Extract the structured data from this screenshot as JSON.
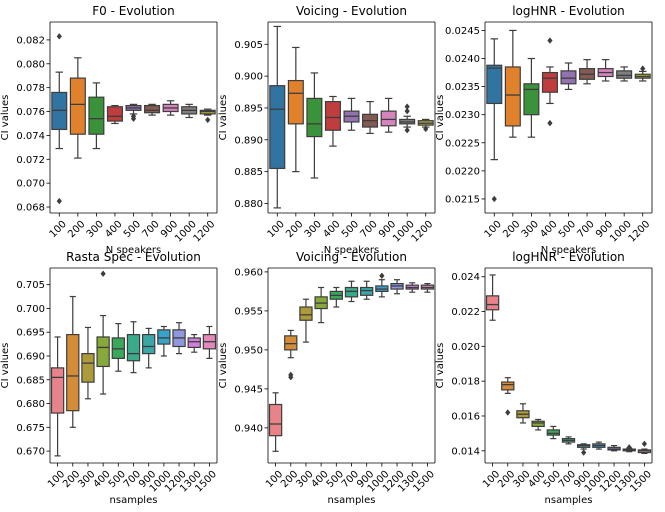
{
  "chart_data": [
    {
      "type": "box",
      "title": "F0 - Evolution",
      "xlabel": "N speakers",
      "ylabel": "CI values",
      "ylim": [
        0.0675,
        0.0835
      ],
      "yticks": [
        0.068,
        0.07,
        0.072,
        0.074,
        0.076,
        0.078,
        0.08,
        0.082
      ],
      "ytick_labels": [
        "0.068",
        "0.070",
        "0.072",
        "0.074",
        "0.076",
        "0.078",
        "0.080",
        "0.082"
      ],
      "categories": [
        "100",
        "200",
        "300",
        "400",
        "500",
        "700",
        "900",
        "1000",
        "1200"
      ],
      "colors": [
        "#3274a1",
        "#e1812c",
        "#3a923a",
        "#c03d3e",
        "#9372b2",
        "#845b53",
        "#d684bd",
        "#7f7f7f",
        "#a9aa35"
      ],
      "boxes": [
        {
          "q1": 0.0745,
          "median": 0.0761,
          "q3": 0.0776,
          "whislo": 0.0729,
          "whishi": 0.0793,
          "fliers": [
            0.0823,
            0.0685
          ]
        },
        {
          "q1": 0.0741,
          "median": 0.0766,
          "q3": 0.0788,
          "whislo": 0.0721,
          "whishi": 0.0805,
          "fliers": []
        },
        {
          "q1": 0.0741,
          "median": 0.0754,
          "q3": 0.0772,
          "whislo": 0.0729,
          "whishi": 0.0784,
          "fliers": []
        },
        {
          "q1": 0.0752,
          "median": 0.0756,
          "q3": 0.0764,
          "whislo": 0.075,
          "whishi": 0.0765,
          "fliers": []
        },
        {
          "q1": 0.0761,
          "median": 0.0763,
          "q3": 0.0765,
          "whislo": 0.0758,
          "whishi": 0.0766,
          "fliers": [
            0.0756,
            0.0754
          ]
        },
        {
          "q1": 0.0759,
          "median": 0.0761,
          "q3": 0.0765,
          "whislo": 0.0757,
          "whishi": 0.0766,
          "fliers": []
        },
        {
          "q1": 0.076,
          "median": 0.0763,
          "q3": 0.0766,
          "whislo": 0.0757,
          "whishi": 0.0769,
          "fliers": []
        },
        {
          "q1": 0.0758,
          "median": 0.0761,
          "q3": 0.0764,
          "whislo": 0.0755,
          "whishi": 0.0766,
          "fliers": []
        },
        {
          "q1": 0.0758,
          "median": 0.076,
          "q3": 0.0761,
          "whislo": 0.0757,
          "whishi": 0.0762,
          "fliers": [
            0.0753
          ]
        }
      ]
    },
    {
      "type": "box",
      "title": "Voicing - Evolution",
      "xlabel": "N speakers",
      "ylabel": "CI values",
      "ylim": [
        0.8785,
        0.9085
      ],
      "yticks": [
        0.88,
        0.885,
        0.89,
        0.895,
        0.9,
        0.905
      ],
      "ytick_labels": [
        "0.880",
        "0.885",
        "0.890",
        "0.895",
        "0.900",
        "0.905"
      ],
      "categories": [
        "100",
        "200",
        "300",
        "400",
        "500",
        "700",
        "900",
        "1000",
        "1200"
      ],
      "colors": [
        "#3274a1",
        "#e1812c",
        "#3a923a",
        "#c03d3e",
        "#9372b2",
        "#845b53",
        "#d684bd",
        "#7f7f7f",
        "#a9aa35"
      ],
      "boxes": [
        {
          "q1": 0.8855,
          "median": 0.8948,
          "q3": 0.8985,
          "whislo": 0.8793,
          "whishi": 0.9078,
          "fliers": []
        },
        {
          "q1": 0.8925,
          "median": 0.8973,
          "q3": 0.8993,
          "whislo": 0.885,
          "whishi": 0.9045,
          "fliers": []
        },
        {
          "q1": 0.8905,
          "median": 0.8925,
          "q3": 0.8965,
          "whislo": 0.884,
          "whishi": 0.9005,
          "fliers": []
        },
        {
          "q1": 0.8915,
          "median": 0.8935,
          "q3": 0.896,
          "whislo": 0.889,
          "whishi": 0.8968,
          "fliers": []
        },
        {
          "q1": 0.8928,
          "median": 0.8937,
          "q3": 0.8945,
          "whislo": 0.8915,
          "whishi": 0.8965,
          "fliers": []
        },
        {
          "q1": 0.892,
          "median": 0.893,
          "q3": 0.894,
          "whislo": 0.891,
          "whishi": 0.896,
          "fliers": []
        },
        {
          "q1": 0.8922,
          "median": 0.8932,
          "q3": 0.8945,
          "whislo": 0.8912,
          "whishi": 0.8965,
          "fliers": []
        },
        {
          "q1": 0.8925,
          "median": 0.8928,
          "q3": 0.8932,
          "whislo": 0.892,
          "whishi": 0.8937,
          "fliers": [
            0.8952,
            0.8945,
            0.8915
          ]
        },
        {
          "q1": 0.8923,
          "median": 0.8926,
          "q3": 0.893,
          "whislo": 0.892,
          "whishi": 0.8932,
          "fliers": [
            0.8917
          ]
        }
      ]
    },
    {
      "type": "box",
      "title": "logHNR - Evolution",
      "xlabel": "N speakers",
      "ylabel": "CI values",
      "ylim": [
        0.02125,
        0.02465
      ],
      "yticks": [
        0.0215,
        0.022,
        0.0225,
        0.023,
        0.0235,
        0.024,
        0.0245
      ],
      "ytick_labels": [
        "0.0215",
        "0.0220",
        "0.0225",
        "0.0230",
        "0.0235",
        "0.0240",
        "0.0245"
      ],
      "categories": [
        "100",
        "200",
        "300",
        "400",
        "500",
        "700",
        "900",
        "1000",
        "1200"
      ],
      "colors": [
        "#3274a1",
        "#e1812c",
        "#3a923a",
        "#c03d3e",
        "#9372b2",
        "#845b53",
        "#d684bd",
        "#7f7f7f",
        "#a9aa35"
      ],
      "boxes": [
        {
          "q1": 0.0232,
          "median": 0.02383,
          "q3": 0.02388,
          "whislo": 0.0222,
          "whishi": 0.02435,
          "fliers": [
            0.0215
          ]
        },
        {
          "q1": 0.0228,
          "median": 0.02335,
          "q3": 0.02385,
          "whislo": 0.0226,
          "whishi": 0.0245,
          "fliers": []
        },
        {
          "q1": 0.023,
          "median": 0.02345,
          "q3": 0.02355,
          "whislo": 0.0226,
          "whishi": 0.024,
          "fliers": []
        },
        {
          "q1": 0.0234,
          "median": 0.02365,
          "q3": 0.02375,
          "whislo": 0.0232,
          "whishi": 0.02385,
          "fliers": [
            0.02432,
            0.02285
          ]
        },
        {
          "q1": 0.02355,
          "median": 0.02365,
          "q3": 0.02378,
          "whislo": 0.02345,
          "whishi": 0.02392,
          "fliers": []
        },
        {
          "q1": 0.02363,
          "median": 0.02372,
          "q3": 0.02382,
          "whislo": 0.02355,
          "whishi": 0.02398,
          "fliers": []
        },
        {
          "q1": 0.02368,
          "median": 0.02375,
          "q3": 0.02382,
          "whislo": 0.0236,
          "whishi": 0.02398,
          "fliers": []
        },
        {
          "q1": 0.02365,
          "median": 0.0237,
          "q3": 0.02378,
          "whislo": 0.0236,
          "whishi": 0.02385,
          "fliers": []
        },
        {
          "q1": 0.02365,
          "median": 0.02368,
          "q3": 0.02372,
          "whislo": 0.0236,
          "whishi": 0.02377,
          "fliers": [
            0.02382
          ]
        }
      ]
    },
    {
      "type": "box",
      "title": "Rasta Spec - Evolution",
      "xlabel": "nsamples",
      "ylabel": "CI values",
      "ylim": [
        0.6675,
        0.7085
      ],
      "yticks": [
        0.67,
        0.675,
        0.68,
        0.685,
        0.69,
        0.695,
        0.7,
        0.705
      ],
      "ytick_labels": [
        "0.670",
        "0.675",
        "0.680",
        "0.685",
        "0.690",
        "0.695",
        "0.700",
        "0.705"
      ],
      "categories": [
        "100",
        "200",
        "300",
        "400",
        "500",
        "700",
        "900",
        "1000",
        "1200",
        "1300",
        "1500"
      ],
      "colors": [
        "#e8838a",
        "#d48c38",
        "#ad9a3a",
        "#86a93a",
        "#3aa85a",
        "#3aa98c",
        "#3aa6a6",
        "#3aa2c8",
        "#9097dd",
        "#d17fdc",
        "#e388bb"
      ],
      "boxes": [
        {
          "q1": 0.678,
          "median": 0.6855,
          "q3": 0.6875,
          "whislo": 0.669,
          "whishi": 0.694,
          "fliers": []
        },
        {
          "q1": 0.6785,
          "median": 0.6858,
          "q3": 0.6945,
          "whislo": 0.675,
          "whishi": 0.7025,
          "fliers": []
        },
        {
          "q1": 0.6845,
          "median": 0.6885,
          "q3": 0.6905,
          "whislo": 0.681,
          "whishi": 0.696,
          "fliers": []
        },
        {
          "q1": 0.6878,
          "median": 0.6918,
          "q3": 0.694,
          "whislo": 0.682,
          "whishi": 0.6985,
          "fliers": [
            0.7073
          ]
        },
        {
          "q1": 0.6895,
          "median": 0.6915,
          "q3": 0.6938,
          "whislo": 0.6868,
          "whishi": 0.6968,
          "fliers": []
        },
        {
          "q1": 0.689,
          "median": 0.6905,
          "q3": 0.6945,
          "whislo": 0.6865,
          "whishi": 0.6972,
          "fliers": []
        },
        {
          "q1": 0.6905,
          "median": 0.692,
          "q3": 0.6945,
          "whislo": 0.6875,
          "whishi": 0.6958,
          "fliers": []
        },
        {
          "q1": 0.6925,
          "median": 0.6938,
          "q3": 0.6955,
          "whislo": 0.69,
          "whishi": 0.6962,
          "fliers": []
        },
        {
          "q1": 0.692,
          "median": 0.6938,
          "q3": 0.6955,
          "whislo": 0.6905,
          "whishi": 0.697,
          "fliers": []
        },
        {
          "q1": 0.6918,
          "median": 0.693,
          "q3": 0.6938,
          "whislo": 0.6908,
          "whishi": 0.6945,
          "fliers": []
        },
        {
          "q1": 0.6915,
          "median": 0.693,
          "q3": 0.6945,
          "whislo": 0.6895,
          "whishi": 0.6962,
          "fliers": []
        }
      ]
    },
    {
      "type": "box",
      "title": "Voicing - Evolution",
      "xlabel": "nsamples",
      "ylabel": "CI values",
      "ylim": [
        0.9355,
        0.9605
      ],
      "yticks": [
        0.94,
        0.945,
        0.95,
        0.955,
        0.96
      ],
      "ytick_labels": [
        "0.940",
        "0.945",
        "0.950",
        "0.955",
        "0.960"
      ],
      "categories": [
        "100",
        "200",
        "300",
        "400",
        "500",
        "700",
        "900",
        "1000",
        "1200",
        "1300",
        "1500"
      ],
      "colors": [
        "#e8838a",
        "#d48c38",
        "#ad9a3a",
        "#86a93a",
        "#3aa85a",
        "#3aa98c",
        "#3aa6a6",
        "#3aa2c8",
        "#9097dd",
        "#d17fdc",
        "#e388bb"
      ],
      "boxes": [
        {
          "q1": 0.939,
          "median": 0.9405,
          "q3": 0.943,
          "whislo": 0.937,
          "whishi": 0.9445,
          "fliers": []
        },
        {
          "q1": 0.95,
          "median": 0.9508,
          "q3": 0.9518,
          "whislo": 0.949,
          "whishi": 0.9525,
          "fliers": [
            0.9468,
            0.9465
          ]
        },
        {
          "q1": 0.9538,
          "median": 0.9545,
          "q3": 0.9555,
          "whislo": 0.951,
          "whishi": 0.9565,
          "fliers": []
        },
        {
          "q1": 0.9553,
          "median": 0.956,
          "q3": 0.9568,
          "whislo": 0.9535,
          "whishi": 0.958,
          "fliers": []
        },
        {
          "q1": 0.9565,
          "median": 0.957,
          "q3": 0.9575,
          "whislo": 0.9555,
          "whishi": 0.958,
          "fliers": []
        },
        {
          "q1": 0.9568,
          "median": 0.9575,
          "q3": 0.958,
          "whislo": 0.9562,
          "whishi": 0.9588,
          "fliers": []
        },
        {
          "q1": 0.957,
          "median": 0.9576,
          "q3": 0.958,
          "whislo": 0.9565,
          "whishi": 0.9588,
          "fliers": []
        },
        {
          "q1": 0.9575,
          "median": 0.9578,
          "q3": 0.9582,
          "whislo": 0.9568,
          "whishi": 0.959,
          "fliers": [
            0.9595
          ]
        },
        {
          "q1": 0.9578,
          "median": 0.9582,
          "q3": 0.9585,
          "whislo": 0.9572,
          "whishi": 0.959,
          "fliers": []
        },
        {
          "q1": 0.9578,
          "median": 0.958,
          "q3": 0.9583,
          "whislo": 0.9574,
          "whishi": 0.9586,
          "fliers": []
        },
        {
          "q1": 0.9578,
          "median": 0.958,
          "q3": 0.9583,
          "whislo": 0.9574,
          "whishi": 0.9585,
          "fliers": []
        }
      ]
    },
    {
      "type": "box",
      "title": "logHNR - Evolution",
      "xlabel": "nsamples",
      "ylabel": "CI values",
      "ylim": [
        0.0133,
        0.0245
      ],
      "yticks": [
        0.014,
        0.016,
        0.018,
        0.02,
        0.022,
        0.024
      ],
      "ytick_labels": [
        "0.014",
        "0.016",
        "0.018",
        "0.020",
        "0.022",
        "0.024"
      ],
      "categories": [
        "100",
        "200",
        "300",
        "400",
        "500",
        "700",
        "900",
        "1000",
        "1200",
        "1300",
        "1500"
      ],
      "colors": [
        "#e8838a",
        "#d48c38",
        "#ad9a3a",
        "#86a93a",
        "#3aa85a",
        "#3aa98c",
        "#3aa6a6",
        "#3aa2c8",
        "#9097dd",
        "#d17fdc",
        "#e388bb"
      ],
      "boxes": [
        {
          "q1": 0.0221,
          "median": 0.0224,
          "q3": 0.0229,
          "whislo": 0.0215,
          "whishi": 0.0241,
          "fliers": []
        },
        {
          "q1": 0.0175,
          "median": 0.0178,
          "q3": 0.01795,
          "whislo": 0.0173,
          "whishi": 0.0182,
          "fliers": [
            0.0162
          ]
        },
        {
          "q1": 0.0159,
          "median": 0.0161,
          "q3": 0.0163,
          "whislo": 0.0156,
          "whishi": 0.0167,
          "fliers": []
        },
        {
          "q1": 0.0154,
          "median": 0.0156,
          "q3": 0.0157,
          "whislo": 0.0152,
          "whishi": 0.0158,
          "fliers": []
        },
        {
          "q1": 0.0149,
          "median": 0.015,
          "q3": 0.0152,
          "whislo": 0.0147,
          "whishi": 0.0154,
          "fliers": []
        },
        {
          "q1": 0.0145,
          "median": 0.0146,
          "q3": 0.0147,
          "whislo": 0.0144,
          "whishi": 0.0148,
          "fliers": []
        },
        {
          "q1": 0.0142,
          "median": 0.0143,
          "q3": 0.01435,
          "whislo": 0.0141,
          "whishi": 0.0144,
          "fliers": [
            0.0139
          ]
        },
        {
          "q1": 0.0142,
          "median": 0.0143,
          "q3": 0.0144,
          "whislo": 0.0141,
          "whishi": 0.0145,
          "fliers": []
        },
        {
          "q1": 0.01405,
          "median": 0.0141,
          "q3": 0.0142,
          "whislo": 0.014,
          "whishi": 0.0143,
          "fliers": []
        },
        {
          "q1": 0.014,
          "median": 0.01405,
          "q3": 0.0141,
          "whislo": 0.01395,
          "whishi": 0.01415,
          "fliers": [
            0.0142
          ]
        },
        {
          "q1": 0.0139,
          "median": 0.014,
          "q3": 0.01405,
          "whislo": 0.01385,
          "whishi": 0.0141,
          "fliers": [
            0.0144
          ]
        }
      ]
    }
  ]
}
